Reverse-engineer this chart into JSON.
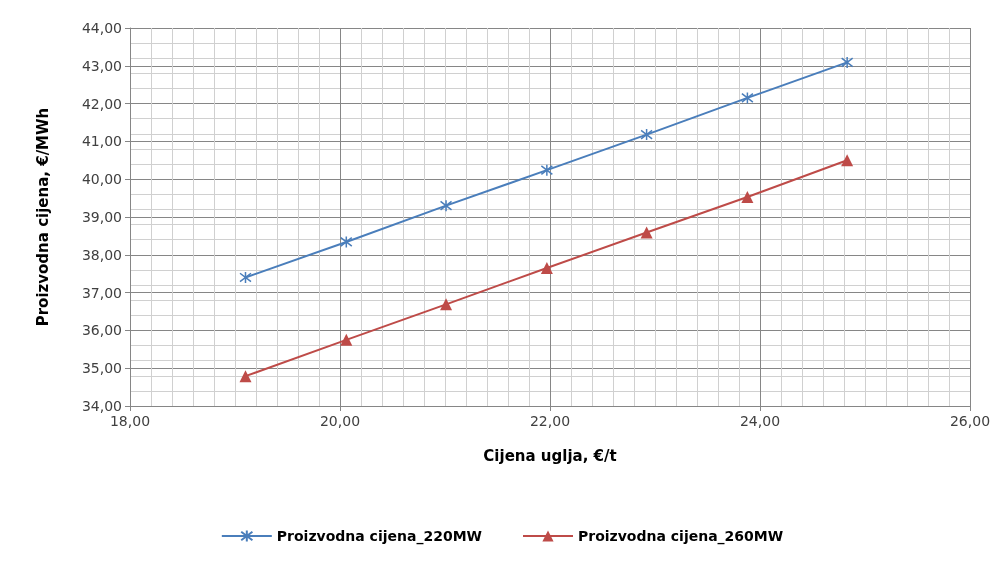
{
  "chart_data": {
    "type": "line",
    "xlabel": "Cijena uglja, €/t",
    "ylabel": "Proizvodna cijena, €/MWh",
    "xlim": [
      18,
      26
    ],
    "xticks": [
      {
        "value": 18,
        "label": "18,00"
      },
      {
        "value": 20,
        "label": "20,00"
      },
      {
        "value": 22,
        "label": "22,00"
      },
      {
        "value": 24,
        "label": "24,00"
      },
      {
        "value": 26,
        "label": "26,00"
      }
    ],
    "ylim": [
      34,
      44
    ],
    "yticks": [
      {
        "value": 34,
        "label": "34,00"
      },
      {
        "value": 35,
        "label": "35,00"
      },
      {
        "value": 36,
        "label": "36,00"
      },
      {
        "value": 37,
        "label": "37,00"
      },
      {
        "value": 38,
        "label": "38,00"
      },
      {
        "value": 39,
        "label": "39,00"
      },
      {
        "value": 40,
        "label": "40,00"
      },
      {
        "value": 41,
        "label": "41,00"
      },
      {
        "value": 42,
        "label": "42,00"
      },
      {
        "value": 43,
        "label": "43,00"
      },
      {
        "value": 44,
        "label": "44,00"
      }
    ],
    "grid": true,
    "legend": "bottom",
    "line_style": "solid",
    "x": [
      19.1,
      20.06,
      21.01,
      21.97,
      22.92,
      23.88,
      24.83
    ],
    "series": [
      {
        "name": "Proizvodna cijena_220MW",
        "color": "#4a7ebb",
        "marker": "cross",
        "values": [
          37.4,
          38.34,
          39.3,
          40.24,
          41.18,
          42.15,
          43.09
        ]
      },
      {
        "name": "Proizvodna cijena_260MW",
        "color": "#be4b48",
        "marker": "triangle",
        "values": [
          34.79,
          35.75,
          36.69,
          37.65,
          38.59,
          39.53,
          40.5
        ]
      }
    ]
  }
}
